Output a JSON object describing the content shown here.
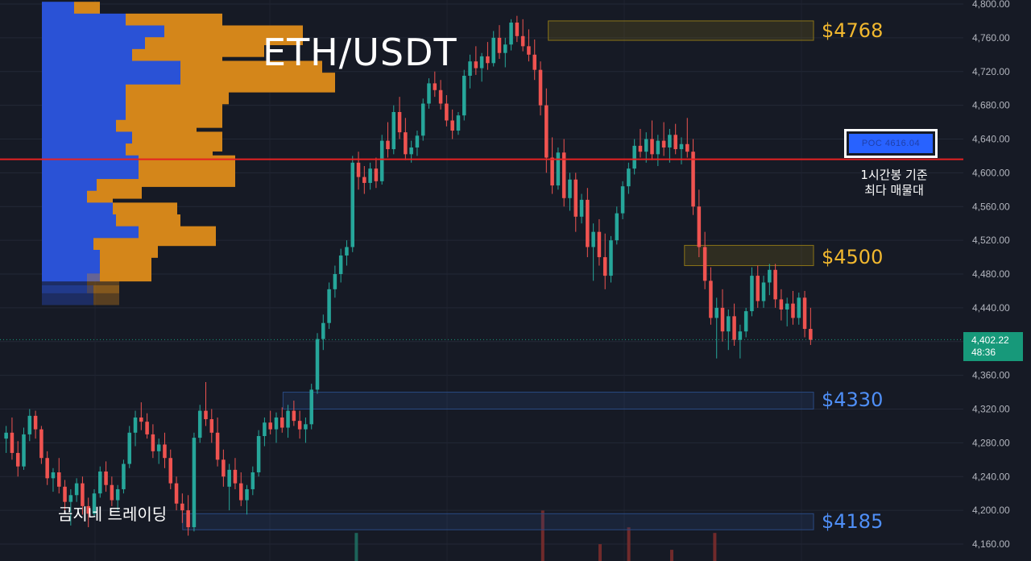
{
  "title": "ETH/USDT",
  "brand": "곰지네 트레이딩",
  "poc": {
    "tag": "POC  4616.04",
    "note_line1": "1시간봉 기준",
    "note_line2": "최다 매물대"
  },
  "last_price": {
    "price": "4,402.22",
    "countdown": "48:36"
  },
  "price_labels": [
    {
      "text": "$4768",
      "color": "#f2b82f"
    },
    {
      "text": "$4500",
      "color": "#f2b82f"
    },
    {
      "text": "$4330",
      "color": "#4f8ff7"
    },
    {
      "text": "$4185",
      "color": "#4f8ff7"
    }
  ],
  "colors": {
    "up": "#26a69a",
    "down": "#ef5350",
    "poc_line": "#e52222",
    "vp_up": "#2a52d6",
    "vp_down": "#d4861a",
    "background": "#161a25"
  },
  "chart_data": {
    "type": "candlestick",
    "title": "ETH/USDT",
    "y_ticks": [
      "4,800.00",
      "4,760.00",
      "4,720.00",
      "4,680.00",
      "4,640.00",
      "4,600.00",
      "4,560.00",
      "4,520.00",
      "4,480.00",
      "4,440.00",
      "4,400.00",
      "4,360.00",
      "4,320.00",
      "4,280.00",
      "4,240.00",
      "4,200.00",
      "4,160.00"
    ],
    "ylim": [
      4155,
      4805
    ],
    "poc_price": 4616.04,
    "last_price": 4402.22,
    "candles": [
      [
        4285,
        4300,
        4268,
        4292
      ],
      [
        4292,
        4310,
        4260,
        4268
      ],
      [
        4268,
        4282,
        4240,
        4252
      ],
      [
        4252,
        4298,
        4248,
        4290
      ],
      [
        4290,
        4320,
        4282,
        4312
      ],
      [
        4312,
        4318,
        4285,
        4296
      ],
      [
        4296,
        4300,
        4255,
        4262
      ],
      [
        4262,
        4270,
        4230,
        4238
      ],
      [
        4238,
        4250,
        4222,
        4245
      ],
      [
        4245,
        4262,
        4220,
        4228
      ],
      [
        4228,
        4236,
        4200,
        4210
      ],
      [
        4210,
        4225,
        4182,
        4218
      ],
      [
        4218,
        4238,
        4210,
        4232
      ],
      [
        4232,
        4240,
        4195,
        4205
      ],
      [
        4205,
        4215,
        4180,
        4196
      ],
      [
        4196,
        4225,
        4192,
        4220
      ],
      [
        4220,
        4252,
        4215,
        4246
      ],
      [
        4246,
        4258,
        4222,
        4230
      ],
      [
        4230,
        4240,
        4205,
        4212
      ],
      [
        4212,
        4230,
        4200,
        4225
      ],
      [
        4225,
        4260,
        4220,
        4255
      ],
      [
        4255,
        4300,
        4250,
        4292
      ],
      [
        4292,
        4318,
        4276,
        4310
      ],
      [
        4310,
        4328,
        4295,
        4305
      ],
      [
        4305,
        4315,
        4285,
        4290
      ],
      [
        4290,
        4302,
        4262,
        4270
      ],
      [
        4270,
        4285,
        4255,
        4278
      ],
      [
        4278,
        4292,
        4250,
        4262
      ],
      [
        4262,
        4272,
        4225,
        4232
      ],
      [
        4232,
        4240,
        4200,
        4208
      ],
      [
        4208,
        4220,
        4185,
        4200
      ],
      [
        4200,
        4218,
        4170,
        4180
      ],
      [
        4180,
        4292,
        4175,
        4286
      ],
      [
        4286,
        4325,
        4280,
        4318
      ],
      [
        4318,
        4352,
        4300,
        4308
      ],
      [
        4308,
        4320,
        4280,
        4292
      ],
      [
        4292,
        4310,
        4252,
        4260
      ],
      [
        4260,
        4272,
        4228,
        4240
      ],
      [
        4228,
        4255,
        4200,
        4248
      ],
      [
        4248,
        4262,
        4225,
        4232
      ],
      [
        4232,
        4245,
        4205,
        4212
      ],
      [
        4212,
        4230,
        4195,
        4225
      ],
      [
        4225,
        4252,
        4218,
        4245
      ],
      [
        4245,
        4295,
        4240,
        4288
      ],
      [
        4288,
        4310,
        4276,
        4304
      ],
      [
        4304,
        4318,
        4290,
        4296
      ],
      [
        4296,
        4316,
        4280,
        4310
      ],
      [
        4310,
        4322,
        4292,
        4298
      ],
      [
        4298,
        4325,
        4286,
        4318
      ],
      [
        4318,
        4330,
        4300,
        4306
      ],
      [
        4306,
        4318,
        4285,
        4296
      ],
      [
        4296,
        4310,
        4280,
        4302
      ],
      [
        4302,
        4350,
        4296,
        4343
      ],
      [
        4343,
        4410,
        4338,
        4403
      ],
      [
        4403,
        4432,
        4390,
        4422
      ],
      [
        4422,
        4470,
        4415,
        4462
      ],
      [
        4462,
        4490,
        4452,
        4480
      ],
      [
        4480,
        4510,
        4470,
        4502
      ],
      [
        4502,
        4520,
        4490,
        4512
      ],
      [
        4512,
        4620,
        4506,
        4612
      ],
      [
        4612,
        4625,
        4580,
        4595
      ],
      [
        4595,
        4608,
        4575,
        4588
      ],
      [
        4588,
        4612,
        4580,
        4605
      ],
      [
        4605,
        4618,
        4582,
        4590
      ],
      [
        4590,
        4645,
        4586,
        4638
      ],
      [
        4638,
        4660,
        4618,
        4628
      ],
      [
        4628,
        4680,
        4622,
        4672
      ],
      [
        4672,
        4690,
        4640,
        4648
      ],
      [
        4648,
        4665,
        4615,
        4622
      ],
      [
        4622,
        4638,
        4612,
        4630
      ],
      [
        4630,
        4650,
        4620,
        4644
      ],
      [
        4644,
        4688,
        4638,
        4682
      ],
      [
        4682,
        4712,
        4676,
        4706
      ],
      [
        4706,
        4720,
        4690,
        4698
      ],
      [
        4698,
        4710,
        4675,
        4682
      ],
      [
        4682,
        4692,
        4655,
        4662
      ],
      [
        4662,
        4675,
        4640,
        4650
      ],
      [
        4650,
        4672,
        4645,
        4668
      ],
      [
        4668,
        4722,
        4662,
        4715
      ],
      [
        4715,
        4740,
        4700,
        4732
      ],
      [
        4732,
        4750,
        4716,
        4724
      ],
      [
        4724,
        4742,
        4708,
        4738
      ],
      [
        4738,
        4755,
        4722,
        4730
      ],
      [
        4730,
        4768,
        4726,
        4760
      ],
      [
        4760,
        4775,
        4735,
        4742
      ],
      [
        4742,
        4760,
        4725,
        4752
      ],
      [
        4752,
        4782,
        4745,
        4778
      ],
      [
        4778,
        4786,
        4755,
        4762
      ],
      [
        4762,
        4782,
        4744,
        4750
      ],
      [
        4750,
        4770,
        4732,
        4740
      ],
      [
        4740,
        4758,
        4710,
        4722
      ],
      [
        4722,
        4732,
        4668,
        4680
      ],
      [
        4680,
        4700,
        4600,
        4618
      ],
      [
        4618,
        4642,
        4575,
        4585
      ],
      [
        4585,
        4630,
        4580,
        4624
      ],
      [
        4624,
        4640,
        4560,
        4570
      ],
      [
        4570,
        4600,
        4555,
        4592
      ],
      [
        4592,
        4600,
        4530,
        4548
      ],
      [
        4548,
        4575,
        4540,
        4568
      ],
      [
        4568,
        4582,
        4500,
        4512
      ],
      [
        4512,
        4540,
        4472,
        4530
      ],
      [
        4530,
        4545,
        4490,
        4500
      ],
      [
        4500,
        4528,
        4462,
        4478
      ],
      [
        4478,
        4525,
        4470,
        4520
      ],
      [
        4520,
        4560,
        4515,
        4552
      ],
      [
        4552,
        4590,
        4545,
        4584
      ],
      [
        4584,
        4612,
        4575,
        4605
      ],
      [
        4605,
        4640,
        4598,
        4632
      ],
      [
        4632,
        4652,
        4618,
        4625
      ],
      [
        4625,
        4648,
        4612,
        4640
      ],
      [
        4640,
        4662,
        4615,
        4622
      ],
      [
        4622,
        4645,
        4608,
        4638
      ],
      [
        4638,
        4660,
        4620,
        4630
      ],
      [
        4630,
        4652,
        4612,
        4645
      ],
      [
        4645,
        4658,
        4622,
        4628
      ],
      [
        4628,
        4642,
        4610,
        4634
      ],
      [
        4634,
        4665,
        4618,
        4625
      ],
      [
        4625,
        4640,
        4550,
        4560
      ],
      [
        4560,
        4580,
        4500,
        4512
      ],
      [
        4512,
        4530,
        4462,
        4472
      ],
      [
        4472,
        4488,
        4420,
        4428
      ],
      [
        4428,
        4452,
        4380,
        4440
      ],
      [
        4440,
        4462,
        4400,
        4412
      ],
      [
        4412,
        4438,
        4390,
        4430
      ],
      [
        4430,
        4445,
        4395,
        4402
      ],
      [
        4402,
        4420,
        4380,
        4412
      ],
      [
        4412,
        4440,
        4405,
        4436
      ],
      [
        4436,
        4488,
        4430,
        4478
      ],
      [
        4478,
        4490,
        4440,
        4448
      ],
      [
        4448,
        4478,
        4440,
        4470
      ],
      [
        4470,
        4492,
        4455,
        4485
      ],
      [
        4485,
        4492,
        4440,
        4450
      ],
      [
        4450,
        4462,
        4425,
        4438
      ],
      [
        4438,
        4452,
        4418,
        4445
      ],
      [
        4445,
        4460,
        4420,
        4428
      ],
      [
        4428,
        4458,
        4420,
        4452
      ],
      [
        4452,
        4460,
        4405,
        4415
      ],
      [
        4415,
        4440,
        4396,
        4402
      ]
    ],
    "volume_profile": [
      [
        4790,
        10,
        8
      ],
      [
        4776,
        26,
        30
      ],
      [
        4762,
        38,
        43
      ],
      [
        4748,
        32,
        37
      ],
      [
        4734,
        28,
        28
      ],
      [
        4720,
        43,
        44
      ],
      [
        4706,
        43,
        48
      ],
      [
        4692,
        26,
        32
      ],
      [
        4678,
        26,
        30
      ],
      [
        4664,
        26,
        30
      ],
      [
        4650,
        23,
        25
      ],
      [
        4636,
        28,
        28
      ],
      [
        4622,
        26,
        27
      ],
      [
        4608,
        30,
        30
      ],
      [
        4594,
        30,
        30
      ],
      [
        4580,
        17,
        14
      ],
      [
        4566,
        14,
        8
      ],
      [
        4552,
        22,
        20
      ],
      [
        4538,
        23,
        20
      ],
      [
        4524,
        30,
        24
      ],
      [
        4510,
        16,
        20
      ],
      [
        4496,
        18,
        16
      ],
      [
        4482,
        18,
        16
      ],
      [
        4468,
        14,
        10
      ],
      [
        4454,
        16,
        8
      ]
    ],
    "zones": [
      {
        "label": "$4768",
        "y_top": 4780,
        "y_bottom": 4757,
        "x_start": 0.63,
        "fill": "#8a7418"
      },
      {
        "label": "$4500",
        "y_top": 4514,
        "y_bottom": 4490,
        "x_start": 0.82,
        "fill": "#8a7418"
      },
      {
        "label": "$4330",
        "y_top": 4340,
        "y_bottom": 4320,
        "x_start": 0.26,
        "fill": "#2a4a82"
      },
      {
        "label": "$4185",
        "y_top": 4196,
        "y_bottom": 4177,
        "x_start": 0.12,
        "fill": "#2a4a82"
      }
    ],
    "volume_bars": [
      [
        0.36,
        0.05
      ],
      [
        0.62,
        0.09
      ],
      [
        0.7,
        0.03
      ],
      [
        0.74,
        0.06
      ],
      [
        0.8,
        0.02
      ],
      [
        0.86,
        0.05
      ]
    ]
  }
}
